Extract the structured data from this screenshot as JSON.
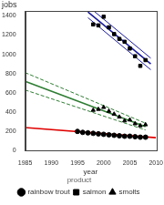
{
  "chart_data": {
    "type": "scatter",
    "y_label": "jobs",
    "x_label": "year",
    "legend_title": "product",
    "legend": "bottom",
    "grid": false,
    "xlim": [
      1985,
      2010
    ],
    "xticks": [
      1985,
      1990,
      1995,
      2000,
      2005,
      2010
    ],
    "ylim": [
      0,
      1450
    ],
    "yticks": [
      0,
      200,
      400,
      600,
      800,
      1000,
      1200,
      1400
    ],
    "series": [
      {
        "name": "rainbow trout",
        "color": "#000000",
        "marker": "circle",
        "x": [
          1995,
          1996,
          1997,
          1998,
          1999,
          2000,
          2001,
          2002,
          2003,
          2004,
          2005,
          2006,
          2007,
          2008
        ],
        "values": [
          200,
          190,
          185,
          180,
          175,
          170,
          165,
          160,
          155,
          150,
          150,
          145,
          140,
          140
        ],
        "fit": {
          "color": "#e00000",
          "line_style": "solid",
          "x": [
            1985,
            2010
          ],
          "values": [
            240,
            135
          ]
        }
      },
      {
        "name": "salmon",
        "color": "#000000",
        "marker": "square",
        "x": [
          1998,
          1999,
          2000,
          2001,
          2002,
          2003,
          2004,
          2005,
          2006,
          2007,
          2008
        ],
        "values": [
          1310,
          1300,
          1390,
          1280,
          1210,
          1160,
          1130,
          1060,
          980,
          880,
          940
        ],
        "fit": {
          "color": "#1a1a9a",
          "line_style": "solid",
          "x": [
            1997,
            2009
          ],
          "values": [
            1440,
            900
          ]
        },
        "band_upper": {
          "color": "#1a1a9a",
          "line_style": "solid",
          "x": [
            1997,
            2009
          ],
          "values": [
            1500,
            960
          ]
        },
        "band_lower": {
          "color": "#1a1a9a",
          "line_style": "solid",
          "x": [
            1997,
            2009
          ],
          "values": [
            1380,
            840
          ]
        }
      },
      {
        "name": "smolts",
        "color": "#000000",
        "marker": "triangle",
        "x": [
          1998,
          1999,
          2000,
          2001,
          2002,
          2003,
          2004,
          2005,
          2006,
          2007,
          2008
        ],
        "values": [
          420,
          430,
          450,
          410,
          380,
          350,
          310,
          320,
          280,
          260,
          270
        ],
        "fit": {
          "color": "#2e7d32",
          "line_style": "solid",
          "x": [
            1985,
            2008
          ],
          "values": [
            720,
            250
          ]
        },
        "band_upper": {
          "color": "#2e7d32",
          "line_style": "dashed",
          "x": [
            1985,
            2008
          ],
          "values": [
            810,
            285
          ]
        },
        "band_lower": {
          "color": "#2e7d32",
          "line_style": "dashed",
          "x": [
            1985,
            2008
          ],
          "values": [
            630,
            215
          ]
        }
      }
    ]
  }
}
